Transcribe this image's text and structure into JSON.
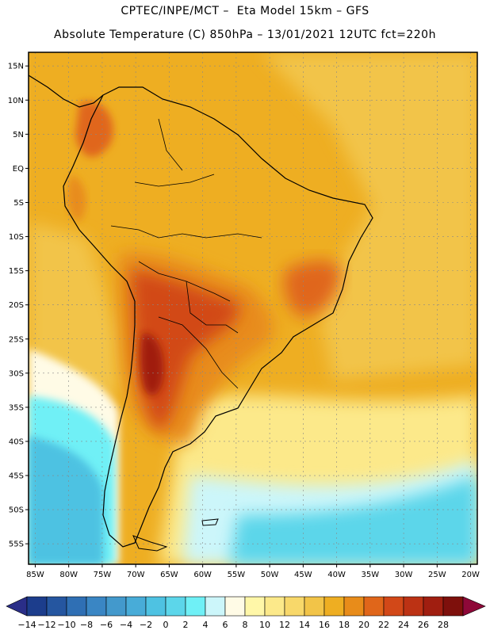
{
  "header": {
    "line1": "CPTEC/INPE/MCT –  Eta Model 15km – GFS",
    "line2": "Absolute Temperature (C) 850hPa – 13/01/2021 12UTC fct=220h"
  },
  "map": {
    "lat_labels": [
      "15N",
      "10N",
      "5N",
      "EQ",
      "5S",
      "10S",
      "15S",
      "20S",
      "25S",
      "30S",
      "35S",
      "40S",
      "45S",
      "50S",
      "55S"
    ],
    "lat_values": [
      15,
      10,
      5,
      0,
      -5,
      -10,
      -15,
      -20,
      -25,
      -30,
      -35,
      -40,
      -45,
      -50,
      -55
    ],
    "lon_labels": [
      "85W",
      "80W",
      "75W",
      "70W",
      "65W",
      "60W",
      "55W",
      "50W",
      "45W",
      "40W",
      "35W",
      "30W",
      "25W",
      "20W"
    ],
    "lon_values": [
      -85,
      -80,
      -75,
      -70,
      -65,
      -60,
      -55,
      -50,
      -45,
      -40,
      -35,
      -30,
      -25,
      -20
    ],
    "lat_range": [
      -58,
      17
    ],
    "lon_range": [
      -86,
      -19
    ]
  },
  "colorbar": {
    "labels": [
      "-14",
      "-12",
      "-10",
      "-8",
      "-6",
      "-4",
      "-2",
      "0",
      "2",
      "4",
      "6",
      "8",
      "10",
      "12",
      "14",
      "16",
      "18",
      "20",
      "22",
      "24",
      "26",
      "28"
    ],
    "colors": [
      "#1c3d8c",
      "#2556a0",
      "#2f6fb4",
      "#3a86c4",
      "#4399cc",
      "#48acd8",
      "#4ec2e2",
      "#5cd6ea",
      "#6ff0f6",
      "#ccf6fa",
      "#fffbe6",
      "#fff7a8",
      "#fce98a",
      "#f8d86a",
      "#f2c448",
      "#eeae22",
      "#e88c1a",
      "#e0661a",
      "#d24818",
      "#bc3214",
      "#a01e10",
      "#7e100c"
    ],
    "under_color": "#2a2e88",
    "over_color": "#8e0838"
  },
  "legend_colors": {
    "warm_core": "#c05018",
    "orange": "#e89a20",
    "light_orange": "#f0b82c",
    "cold_sea": "#50c8e0",
    "land_outline": "#000000"
  }
}
